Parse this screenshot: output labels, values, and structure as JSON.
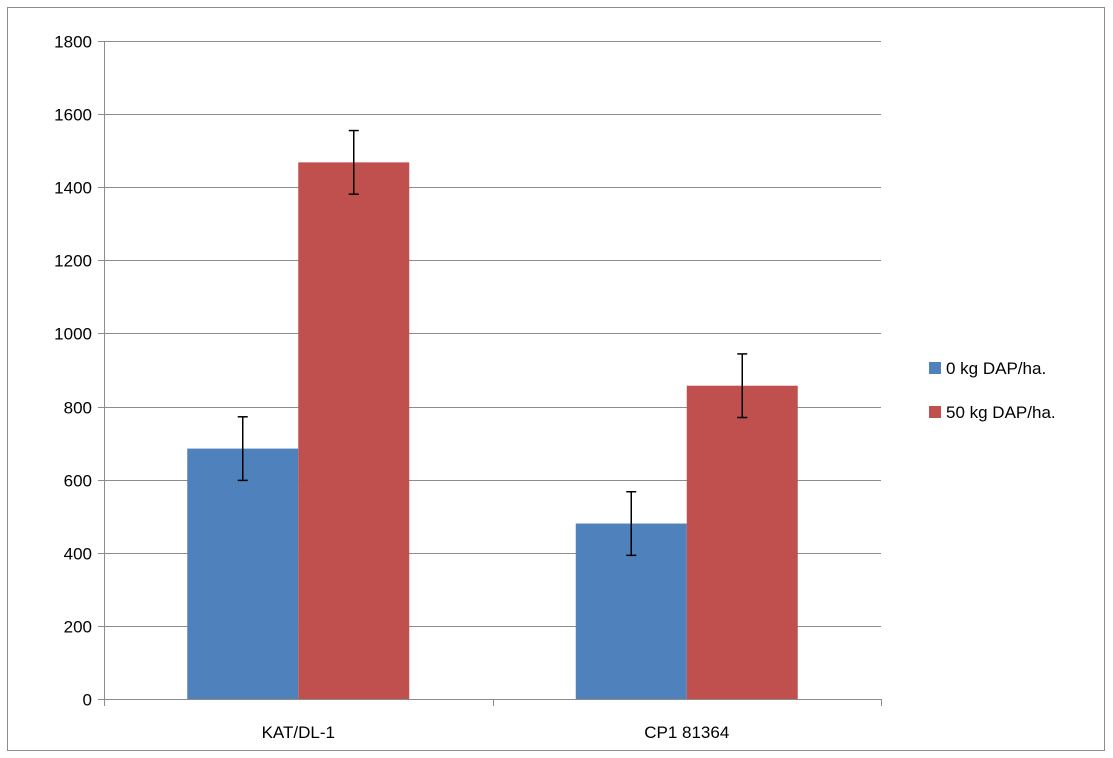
{
  "chart_data": {
    "type": "bar",
    "title": "",
    "xlabel": "",
    "ylabel": "",
    "categories": [
      "KAT/DL-1",
      "CP1 81364"
    ],
    "ylim": [
      0,
      1800
    ],
    "yticks": [
      0,
      200,
      400,
      600,
      800,
      1000,
      1200,
      1400,
      1600,
      1800
    ],
    "grid": true,
    "legend_position": "right",
    "series": [
      {
        "name": "0 kg DAP/ha.",
        "color": "#4f81bd",
        "values": [
          685,
          480
        ],
        "errors": [
          87,
          87
        ]
      },
      {
        "name": "50 kg DAP/ha.",
        "color": "#c0504d",
        "values": [
          1468,
          857
        ],
        "errors": [
          87,
          87
        ]
      }
    ]
  }
}
